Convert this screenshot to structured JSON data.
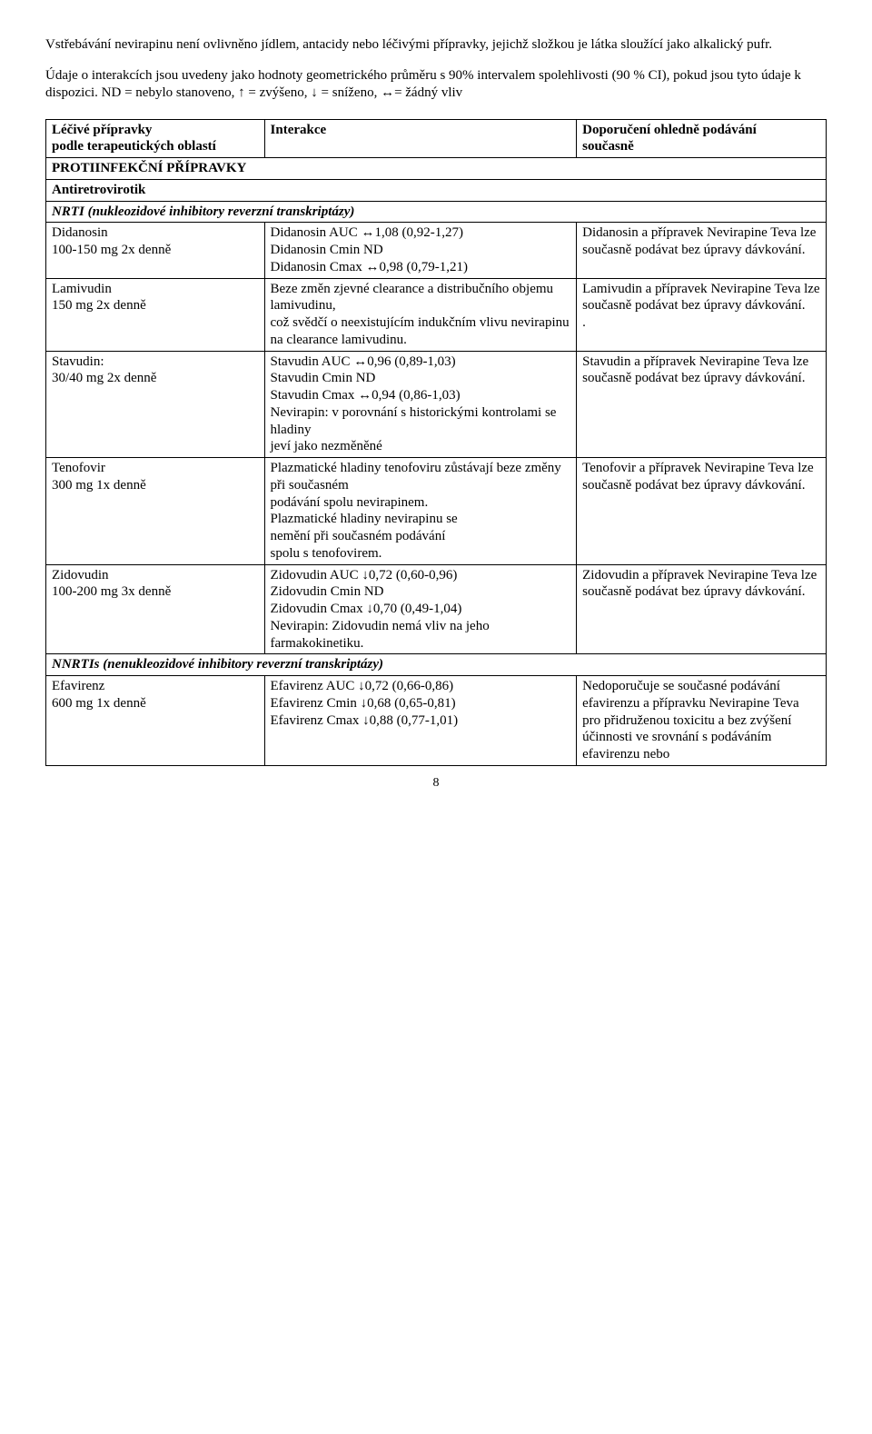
{
  "intro": {
    "p1": "Vstřebávání nevirapinu není ovlivněno jídlem, antacidy nebo léčivými přípravky, jejichž složkou je látka sloužící jako alkalický pufr.",
    "p2": "Údaje o interakcích jsou uvedeny jako hodnoty geometrického průměru s 90% intervalem spolehlivosti (90 % CI), pokud jsou tyto údaje k dispozici. ND = nebylo stanoveno, ↑ = zvýšeno, ↓ = sníženo, ↔= žádný vliv"
  },
  "header": {
    "c1a": "Léčivé přípravky",
    "c1b": "podle terapeutických oblastí",
    "c2": "Interakce",
    "c3a": "Doporučení ohledně podávání",
    "c3b": "současně"
  },
  "sections": {
    "s1": "PROTIINFEKČNÍ PŘÍPRAVKY",
    "s2": "Antiretrovirotik",
    "s3": "NRTI (nukleozidové inhibitory reverzní transkriptázy)",
    "s4": "NNRTIs  (nenukleozidové inhibitory reverzní transkriptázy)"
  },
  "rows": {
    "didanosin": {
      "name": "Didanosin\n100-150 mg 2x denně",
      "interaction": "Didanosin AUC ↔1,08 (0,92-1,27)\nDidanosin Cmin ND\nDidanosin Cmax ↔0,98 (0,79-1,21)",
      "rec": "Didanosin a přípravek Nevirapine Teva lze současně podávat bez úpravy dávkování."
    },
    "lamivudin": {
      "name": "Lamivudin\n150 mg 2x denně",
      "interaction": "Beze změn zjevné clearance a distribučního objemu lamivudinu,\ncož svědčí o neexistujícím indukčním vlivu nevirapinu na clearance lamivudinu.",
      "rec": "Lamivudin a přípravek Nevirapine Teva lze současně podávat bez úpravy dávkování.\n."
    },
    "stavudin": {
      "name": "Stavudin:\n30/40 mg 2x denně",
      "interaction": "Stavudin AUC ↔0,96 (0,89-1,03)\nStavudin Cmin ND\nStavudin Cmax ↔0,94 (0,86-1,03)\nNevirapin: v porovnání s historickými kontrolami se hladiny\njeví jako nezměněné",
      "rec": "Stavudin a přípravek Nevirapine Teva lze současně podávat bez úpravy dávkování."
    },
    "tenofovir": {
      "name": "Tenofovir\n300 mg 1x denně",
      "interaction": "Plazmatické hladiny tenofoviru zůstávají beze změny při současném\npodávání spolu nevirapinem.\nPlazmatické hladiny nevirapinu se\nnemění při současném podávání\nspolu s tenofovirem.",
      "rec": "Tenofovir a přípravek Nevirapine Teva lze současně podávat bez úpravy dávkování."
    },
    "zidovudin": {
      "name": "Zidovudin\n100-200 mg 3x denně",
      "interaction": "Zidovudin AUC ↓0,72 (0,60-0,96)\nZidovudin Cmin ND\nZidovudin Cmax ↓0,70 (0,49-1,04)\nNevirapin: Zidovudin nemá vliv na jeho farmakokinetiku.",
      "rec": "Zidovudin a přípravek Nevirapine Teva lze současně podávat bez úpravy dávkování."
    },
    "efavirenz": {
      "name": "Efavirenz\n600 mg 1x denně",
      "interaction": "Efavirenz AUC ↓0,72 (0,66-0,86)\nEfavirenz Cmin ↓0,68 (0,65-0,81)\nEfavirenz Cmax ↓0,88 (0,77-1,01)",
      "rec": "Nedoporučuje se současné podávání efavirenzu a přípravku Nevirapine Teva pro přidruženou toxicitu a bez zvýšení účinnosti ve srovnání s podáváním efavirenzu nebo"
    }
  },
  "pagenum": "8"
}
